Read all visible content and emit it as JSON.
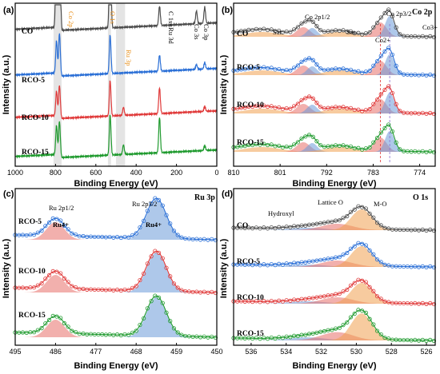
{
  "colors": {
    "CO": "#4d4d4d",
    "RCO-5": "#2a6fd6",
    "RCO-10": "#e03a3a",
    "RCO-15": "#1f9a2e",
    "fit_blue": "#6b9bd8",
    "fit_red": "#e8706a",
    "fit_orange": "#f0a050",
    "band": "#d8d8d8",
    "orange_text": "#e8901c"
  },
  "chart_data": [
    {
      "panel": "(a)",
      "type": "line",
      "xlabel": "Binding Energy (eV)",
      "ylabel": "Intensity (a.u.)",
      "xlim": [
        1000,
        0
      ],
      "xticks": [
        "1000",
        "800",
        "600",
        "400",
        "200",
        "0"
      ],
      "series_names": [
        "CO",
        "RCO-5",
        "RCO-10",
        "RCO-15"
      ],
      "annotations": [
        "Co 2p",
        "O 1s",
        "C 1s+Ru 3d",
        "Co 3s",
        "Co 3p",
        "Ru 3p"
      ],
      "highlight_bands": [
        [
          810,
          770
        ],
        [
          540,
          525
        ],
        [
          500,
          455
        ]
      ],
      "series": [
        {
          "name": "CO",
          "baseline": 0.88,
          "peaks": [
            [
              795,
              0.72
            ],
            [
              780,
              0.9
            ],
            [
              529,
              0.75
            ],
            [
              284,
              0.12
            ],
            [
              101,
              0.08
            ],
            [
              60,
              0.1
            ]
          ]
        },
        {
          "name": "RCO-5",
          "baseline": 0.6,
          "peaks": [
            [
              795,
              0.2
            ],
            [
              780,
              0.26
            ],
            [
              529,
              0.24
            ],
            [
              284,
              0.1
            ],
            [
              101,
              0.03
            ],
            [
              60,
              0.04
            ]
          ]
        },
        {
          "name": "RCO-10",
          "baseline": 0.34,
          "peaks": [
            [
              795,
              0.15
            ],
            [
              780,
              0.2
            ],
            [
              529,
              0.22
            ],
            [
              463,
              0.05
            ],
            [
              284,
              0.16
            ],
            [
              60,
              0.03
            ]
          ]
        },
        {
          "name": "RCO-15",
          "baseline": 0.1,
          "peaks": [
            [
              795,
              0.18
            ],
            [
              780,
              0.22
            ],
            [
              529,
              0.25
            ],
            [
              463,
              0.06
            ],
            [
              284,
              0.22
            ],
            [
              60,
              0.03
            ]
          ]
        }
      ]
    },
    {
      "panel": "(b)",
      "type": "line",
      "title": "Co 2p",
      "xlabel": "Binding Energy (eV)",
      "ylabel": "Intensity (a.u.)",
      "xlim": [
        810,
        771
      ],
      "xticks": [
        "810",
        "801",
        "792",
        "783",
        "774"
      ],
      "series_names": [
        "CO",
        "RCO-5",
        "RCO-10",
        "RCO-15"
      ],
      "annotations": [
        "Sat.",
        "Co 2p1/2",
        "Sat.",
        "Co 2p3/2",
        "Co2+",
        "Co3+"
      ],
      "peak_positions_eV": {
        "Co2p1/2_Co2+": 796.5,
        "Co2p1/2_Co3+": 794.8,
        "Co2p3/2_Co2+": 781.6,
        "Co2p3/2_Co3+": 779.8,
        "Sat_1": 804.5,
        "Sat_2": 789.5
      },
      "reference_lines_eV": [
        781.6,
        779.8
      ]
    },
    {
      "panel": "(c)",
      "type": "line",
      "title": "Ru 3p",
      "xlabel": "Binding Energy (eV)",
      "ylabel": "Intensity (a.u.)",
      "xlim": [
        495,
        450
      ],
      "xticks": [
        "495",
        "486",
        "477",
        "468",
        "459",
        "450"
      ],
      "series_names": [
        "RCO-5",
        "RCO-10",
        "RCO-15"
      ],
      "annotations": [
        "Ru 2p1/2",
        "Ru 2p3/2",
        "Ru4+",
        "Ru4+"
      ],
      "peak_positions_eV": {
        "Ru3p1/2": 486.0,
        "Ru3p3/2": 463.5
      }
    },
    {
      "panel": "(d)",
      "type": "line",
      "title": "O 1s",
      "xlabel": "Binding Energy (eV)",
      "ylabel": "Intensity (a.u.)",
      "xlim": [
        537,
        525.5
      ],
      "xticks": [
        "536",
        "534",
        "532",
        "530",
        "528",
        "526"
      ],
      "series_names": [
        "CO",
        "RCO-5",
        "RCO-10",
        "RCO-15"
      ],
      "annotations": [
        "Hydroxyl",
        "Lattice O",
        "M-O"
      ],
      "peak_positions_eV": {
        "M-O": 529.7,
        "Lattice O": 531.1,
        "Hydroxyl": 532.8
      }
    }
  ]
}
